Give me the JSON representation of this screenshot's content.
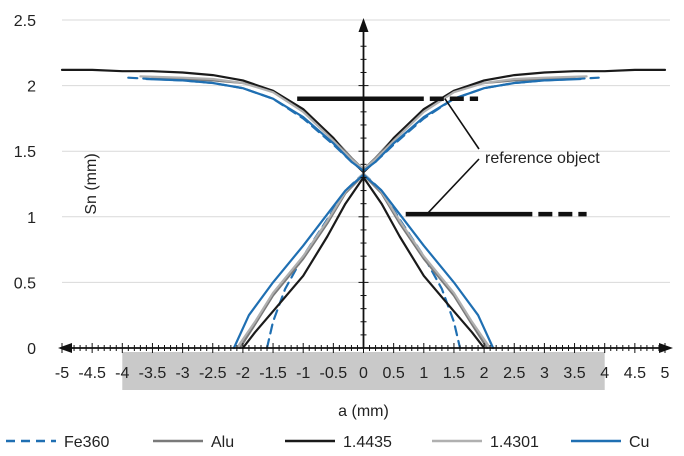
{
  "chart_data": {
    "type": "line",
    "title": "",
    "xlabel": "a (mm)",
    "ylabel": "Sn (mm)",
    "xlim": [
      -5,
      5
    ],
    "ylim": [
      0,
      2.5
    ],
    "x_ticks": [
      "-5",
      "-4.5",
      "-4",
      "-3.5",
      "-3",
      "-2.5",
      "-2",
      "-1.5",
      "-1",
      "-0.5",
      "0",
      "0.5",
      "1",
      "1.5",
      "2",
      "2.5",
      "3",
      "3.5",
      "4",
      "4.5",
      "5"
    ],
    "y_ticks": [
      "0",
      "0.5",
      "1",
      "1.5",
      "2",
      "2.5"
    ],
    "grid": "horizontal",
    "shaded_x_range": [
      -4,
      4
    ],
    "legend_position": "bottom",
    "annotation": {
      "text": "reference object",
      "markers": [
        {
          "y": 1.9,
          "x_start": -1.1,
          "x_end": 1.9
        },
        {
          "y": 1.02,
          "x_start": 0.7,
          "x_end": 3.7
        }
      ]
    },
    "series": [
      {
        "name": "Fe360",
        "color": "#1f6fb2",
        "dash": "dashed",
        "branches": [
          {
            "x": [
              -3.9,
              -3.5,
              -3,
              -2.5,
              -2,
              -1.5,
              -1,
              -0.5,
              -0.2,
              0
            ],
            "y": [
              2.06,
              2.05,
              2.04,
              2.02,
              1.98,
              1.9,
              1.75,
              1.55,
              1.42,
              1.35
            ]
          },
          {
            "x": [
              0,
              0.2,
              0.5,
              1,
              1.5,
              2,
              2.5,
              3,
              3.5,
              3.9
            ],
            "y": [
              1.35,
              1.42,
              1.55,
              1.75,
              1.9,
              1.98,
              2.02,
              2.04,
              2.05,
              2.06
            ]
          },
          {
            "x": [
              -1.6,
              -1.5,
              -1.3,
              -1,
              -0.6,
              -0.3,
              0
            ],
            "y": [
              0,
              0.2,
              0.45,
              0.7,
              0.98,
              1.2,
              1.33
            ]
          },
          {
            "x": [
              0,
              0.3,
              0.6,
              1,
              1.3,
              1.5,
              1.6
            ],
            "y": [
              1.33,
              1.2,
              0.98,
              0.7,
              0.45,
              0.2,
              0
            ]
          }
        ]
      },
      {
        "name": "Alu",
        "color": "#7a7a7a",
        "dash": "solid",
        "branches": [
          {
            "x": [
              -3.5,
              -3,
              -2.5,
              -2,
              -1.5,
              -1,
              -0.5,
              -0.2,
              0
            ],
            "y": [
              2.06,
              2.05,
              2.04,
              2.02,
              1.96,
              1.82,
              1.6,
              1.45,
              1.36
            ]
          },
          {
            "x": [
              0,
              0.2,
              0.5,
              1,
              1.5,
              2,
              2.5,
              3,
              3.5
            ],
            "y": [
              1.36,
              1.45,
              1.6,
              1.82,
              1.96,
              2.02,
              2.04,
              2.05,
              2.06
            ]
          },
          {
            "x": [
              -2.05,
              -1.8,
              -1.5,
              -1,
              -0.6,
              -0.3,
              0
            ],
            "y": [
              0,
              0.18,
              0.4,
              0.68,
              0.95,
              1.18,
              1.32
            ]
          },
          {
            "x": [
              0,
              0.3,
              0.6,
              1,
              1.5,
              1.8,
              2.05
            ],
            "y": [
              1.32,
              1.18,
              0.95,
              0.68,
              0.4,
              0.18,
              0
            ]
          }
        ]
      },
      {
        "name": "1.4435",
        "color": "#1a1a1a",
        "dash": "solid",
        "branches": [
          {
            "x": [
              -5,
              -4.5,
              -4,
              -3.5,
              -3,
              -2.5,
              -2,
              -1.5,
              -1,
              -0.5,
              -0.2,
              0
            ],
            "y": [
              2.12,
              2.12,
              2.11,
              2.11,
              2.1,
              2.08,
              2.04,
              1.96,
              1.82,
              1.6,
              1.43,
              1.34
            ]
          },
          {
            "x": [
              0,
              0.2,
              0.5,
              1,
              1.5,
              2,
              2.5,
              3,
              3.5,
              4,
              4.5,
              5
            ],
            "y": [
              1.34,
              1.43,
              1.6,
              1.82,
              1.96,
              2.04,
              2.08,
              2.1,
              2.11,
              2.11,
              2.12,
              2.12
            ]
          },
          {
            "x": [
              -2,
              -1.8,
              -1.5,
              -1,
              -0.6,
              -0.3,
              0
            ],
            "y": [
              0,
              0.12,
              0.28,
              0.55,
              0.85,
              1.1,
              1.3
            ]
          },
          {
            "x": [
              0,
              0.3,
              0.6,
              1,
              1.5,
              1.8,
              2
            ],
            "y": [
              1.3,
              1.1,
              0.85,
              0.55,
              0.28,
              0.12,
              0
            ]
          }
        ]
      },
      {
        "name": "1.4301",
        "color": "#b0b0b0",
        "dash": "solid",
        "branches": [
          {
            "x": [
              -3.7,
              -3,
              -2.5,
              -2,
              -1.5,
              -1,
              -0.5,
              -0.2,
              0
            ],
            "y": [
              2.07,
              2.06,
              2.05,
              2.02,
              1.95,
              1.8,
              1.58,
              1.44,
              1.36
            ]
          },
          {
            "x": [
              0,
              0.2,
              0.5,
              1,
              1.5,
              2,
              2.5,
              3,
              3.7
            ],
            "y": [
              1.36,
              1.44,
              1.58,
              1.8,
              1.95,
              2.02,
              2.05,
              2.06,
              2.07
            ]
          },
          {
            "x": [
              -2.1,
              -1.8,
              -1.5,
              -1,
              -0.6,
              -0.3,
              0
            ],
            "y": [
              0,
              0.2,
              0.42,
              0.7,
              0.97,
              1.19,
              1.33
            ]
          },
          {
            "x": [
              0,
              0.3,
              0.6,
              1,
              1.5,
              1.8,
              2.1
            ],
            "y": [
              1.33,
              1.19,
              0.97,
              0.7,
              0.42,
              0.2,
              0
            ]
          }
        ]
      },
      {
        "name": "Cu",
        "color": "#1f6fb2",
        "dash": "solid",
        "branches": [
          {
            "x": [
              -3.6,
              -3,
              -2.5,
              -2,
              -1.5,
              -1,
              -0.5,
              -0.2,
              0
            ],
            "y": [
              2.05,
              2.04,
              2.02,
              1.98,
              1.9,
              1.76,
              1.56,
              1.42,
              1.35
            ]
          },
          {
            "x": [
              0,
              0.2,
              0.5,
              1,
              1.5,
              2,
              2.5,
              3,
              3.6
            ],
            "y": [
              1.35,
              1.42,
              1.56,
              1.76,
              1.9,
              1.98,
              2.02,
              2.04,
              2.05
            ]
          },
          {
            "x": [
              -2.15,
              -1.9,
              -1.5,
              -1,
              -0.6,
              -0.3,
              0
            ],
            "y": [
              0,
              0.25,
              0.5,
              0.78,
              1.02,
              1.2,
              1.32
            ]
          },
          {
            "x": [
              0,
              0.3,
              0.6,
              1,
              1.5,
              1.9,
              2.15
            ],
            "y": [
              1.32,
              1.2,
              1.02,
              0.78,
              0.5,
              0.25,
              0
            ]
          }
        ]
      }
    ]
  }
}
